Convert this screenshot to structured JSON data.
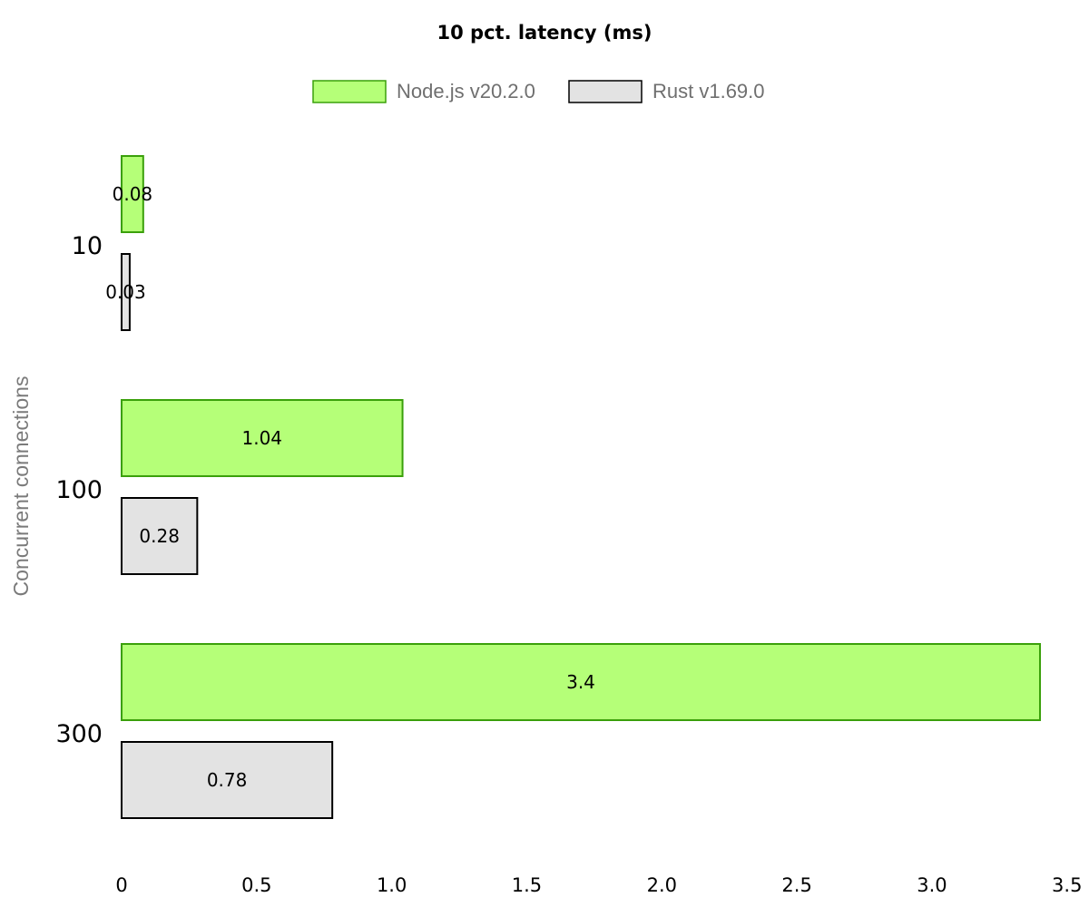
{
  "chart_data": {
    "type": "bar",
    "orientation": "horizontal",
    "title": "10 pct. latency (ms)",
    "ylabel": "Concurrent connections",
    "xlabel": "",
    "categories": [
      "10",
      "100",
      "300"
    ],
    "series": [
      {
        "name": "Node.js v20.2.0",
        "values": [
          0.08,
          1.04,
          3.4
        ],
        "fill": "#b5ff78",
        "stroke": "#3aa00a"
      },
      {
        "name": "Rust v1.69.0",
        "values": [
          0.03,
          0.28,
          0.78
        ],
        "fill": "#e3e3e3",
        "stroke": "#000000"
      }
    ],
    "data_labels": [
      [
        "0.08",
        "1.04",
        "3.4"
      ],
      [
        "0.03",
        "0.28",
        "0.78"
      ]
    ],
    "xlim": [
      0,
      3.5
    ],
    "xticks": [
      {
        "value": 0,
        "label": "0"
      },
      {
        "value": 0.5,
        "label": "0.5"
      },
      {
        "value": 1.0,
        "label": "1.0"
      },
      {
        "value": 1.5,
        "label": "1.5"
      },
      {
        "value": 2.0,
        "label": "2.0"
      },
      {
        "value": 2.5,
        "label": "2.5"
      },
      {
        "value": 3.0,
        "label": "3.0"
      },
      {
        "value": 3.5,
        "label": "3.5"
      }
    ],
    "grid": false,
    "legend": "top-center"
  }
}
